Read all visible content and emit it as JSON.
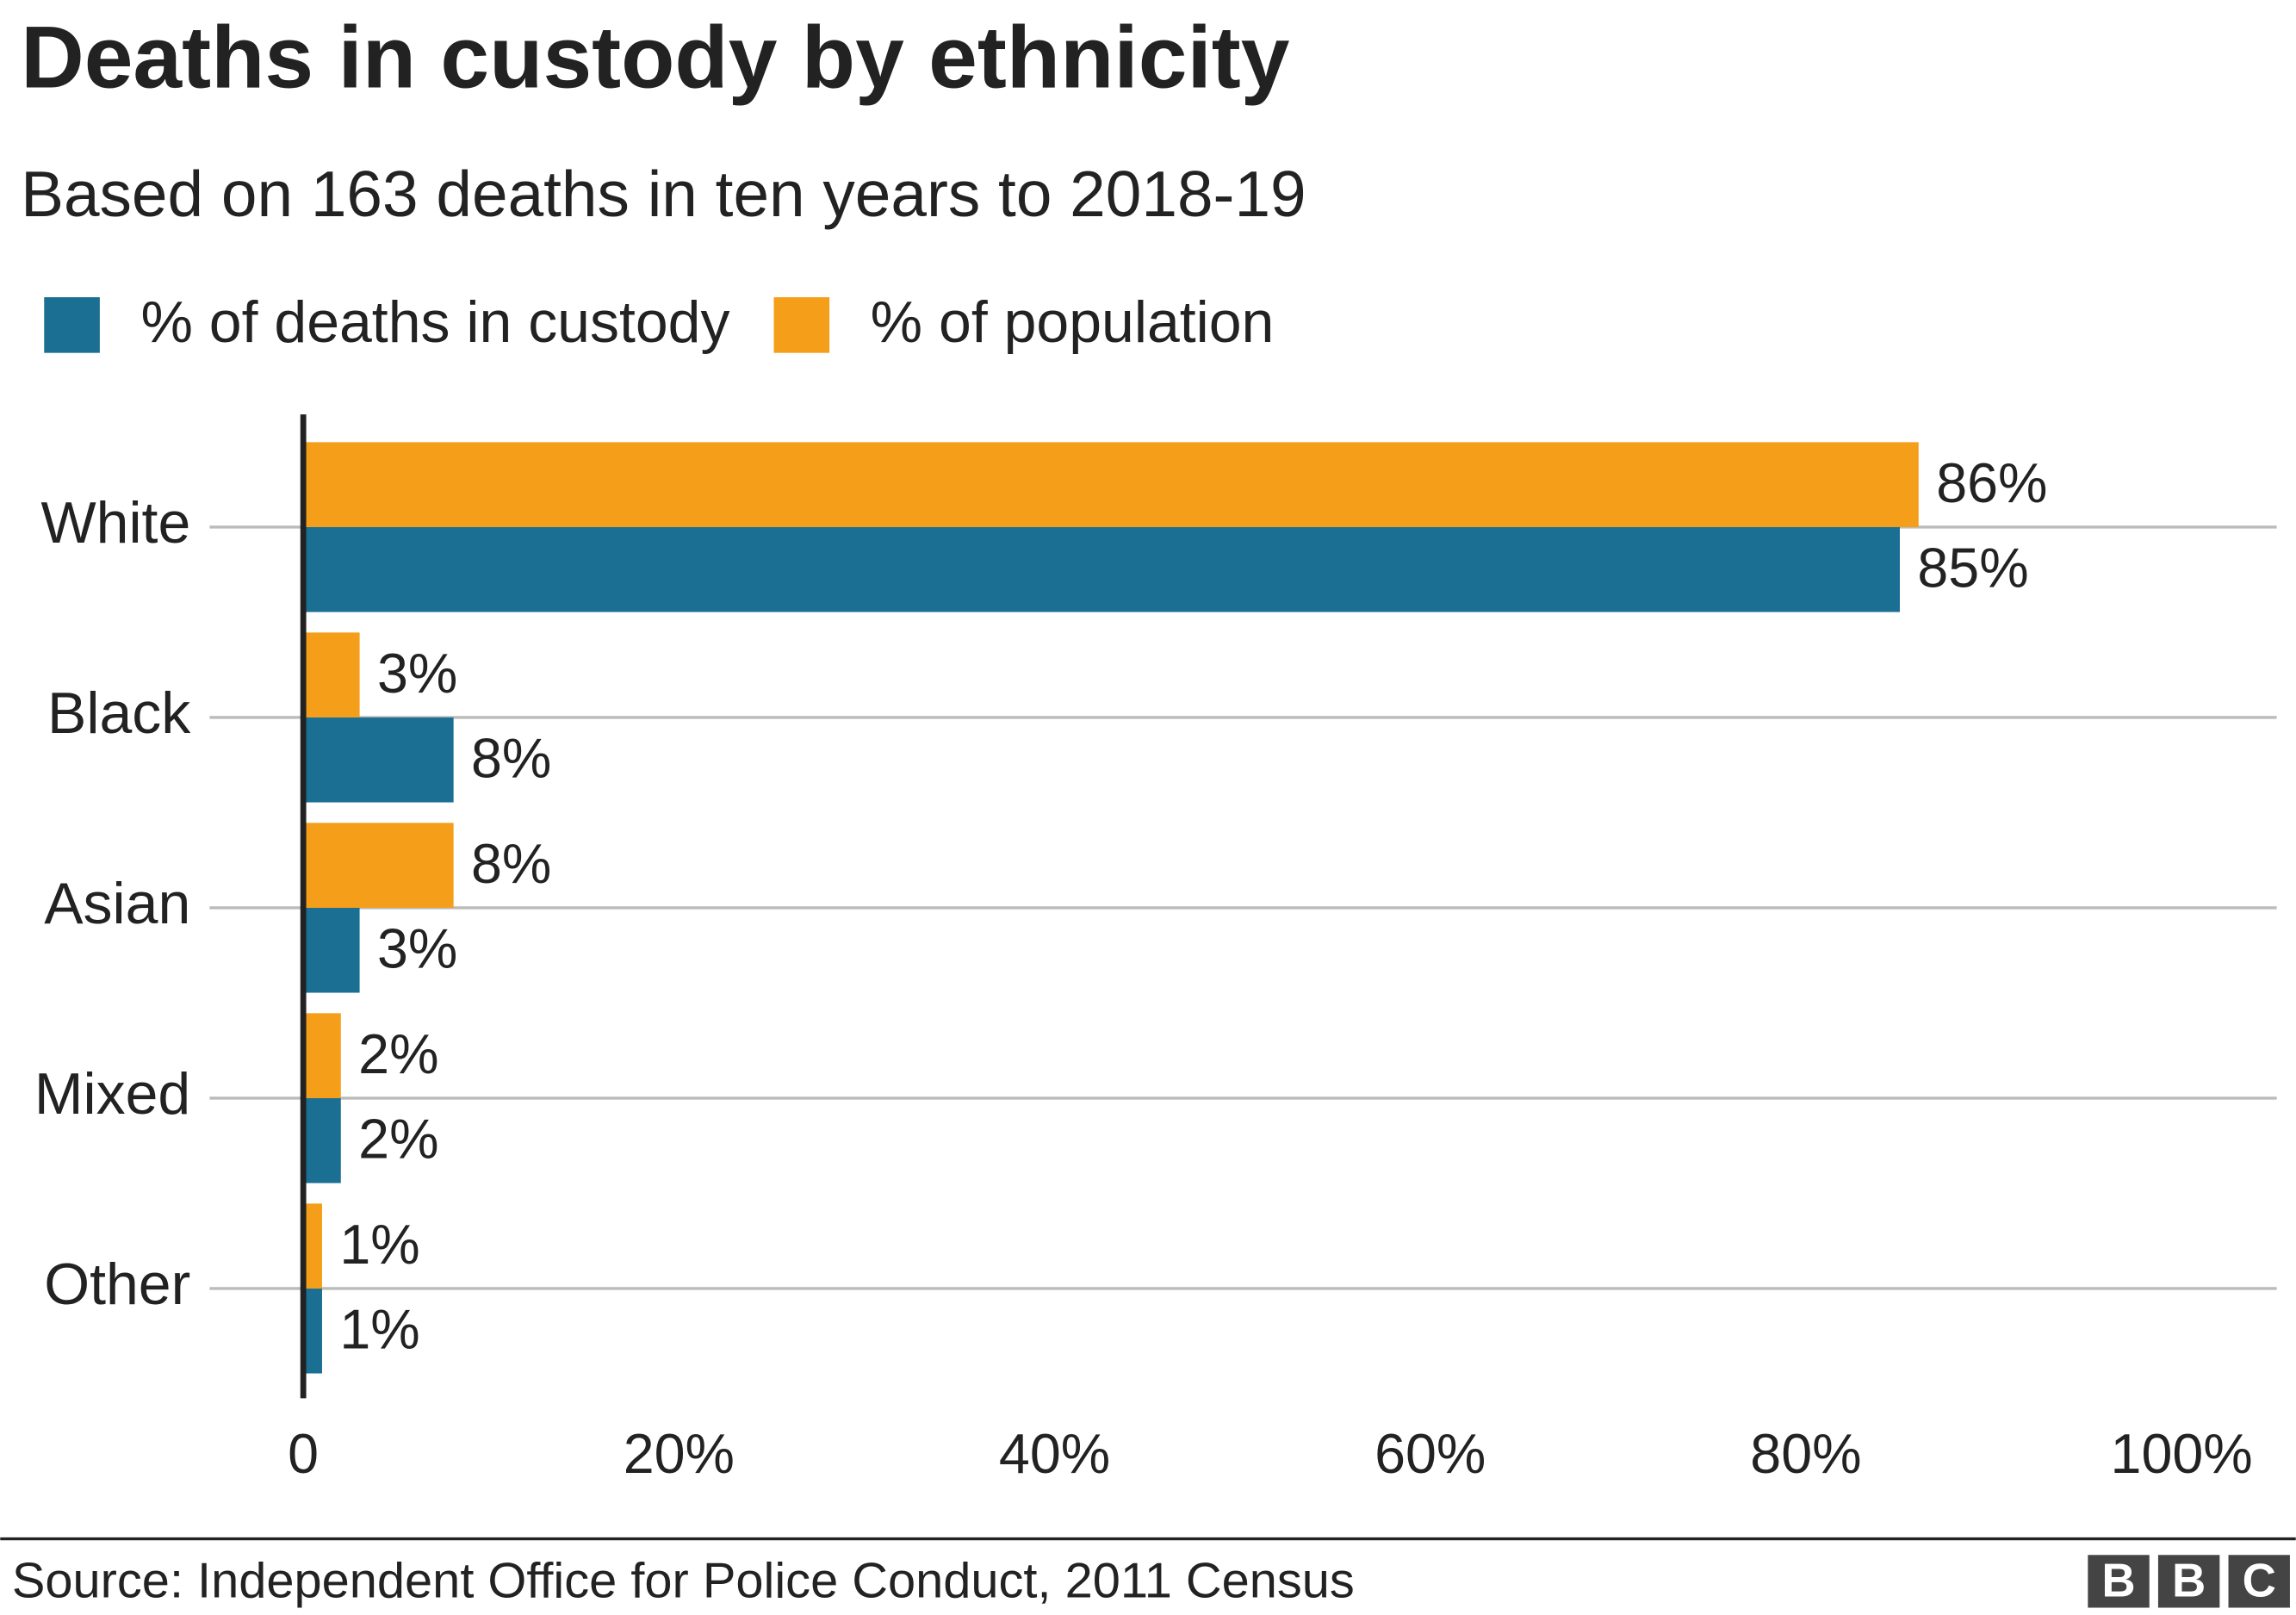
{
  "chart_data": {
    "type": "grouped-bar-horizontal",
    "title": "Deaths in custody by ethnicity",
    "subtitle": "Based on 163 deaths in ten years to 2018-19",
    "categories": [
      "White",
      "Black",
      "Asian",
      "Mixed",
      "Other"
    ],
    "series": [
      {
        "name": "% of deaths in custody",
        "color": "#1a6f93",
        "values": [
          85,
          8,
          3,
          2,
          1
        ],
        "value_labels": [
          "85%",
          "8%",
          "3%",
          "2%",
          "1%"
        ]
      },
      {
        "name": "% of population",
        "color": "#f59e1a",
        "values": [
          86,
          3,
          8,
          2,
          1
        ],
        "value_labels": [
          "86%",
          "3%",
          "8%",
          "2%",
          "1%"
        ]
      }
    ],
    "xlim": [
      0,
      100
    ],
    "xticks": [
      0,
      {
        "value": 20,
        "label": "20%"
      },
      {
        "value": 40,
        "label": "40%"
      },
      {
        "value": 60,
        "label": "60%"
      },
      {
        "value": 80,
        "label": "80%"
      },
      {
        "value": 100,
        "label": "100%"
      }
    ],
    "grid": true,
    "legend": "top-left",
    "source": "Source: Independent Office for Police Conduct, 2011 Census",
    "logo": [
      "B",
      "B",
      "C"
    ]
  }
}
